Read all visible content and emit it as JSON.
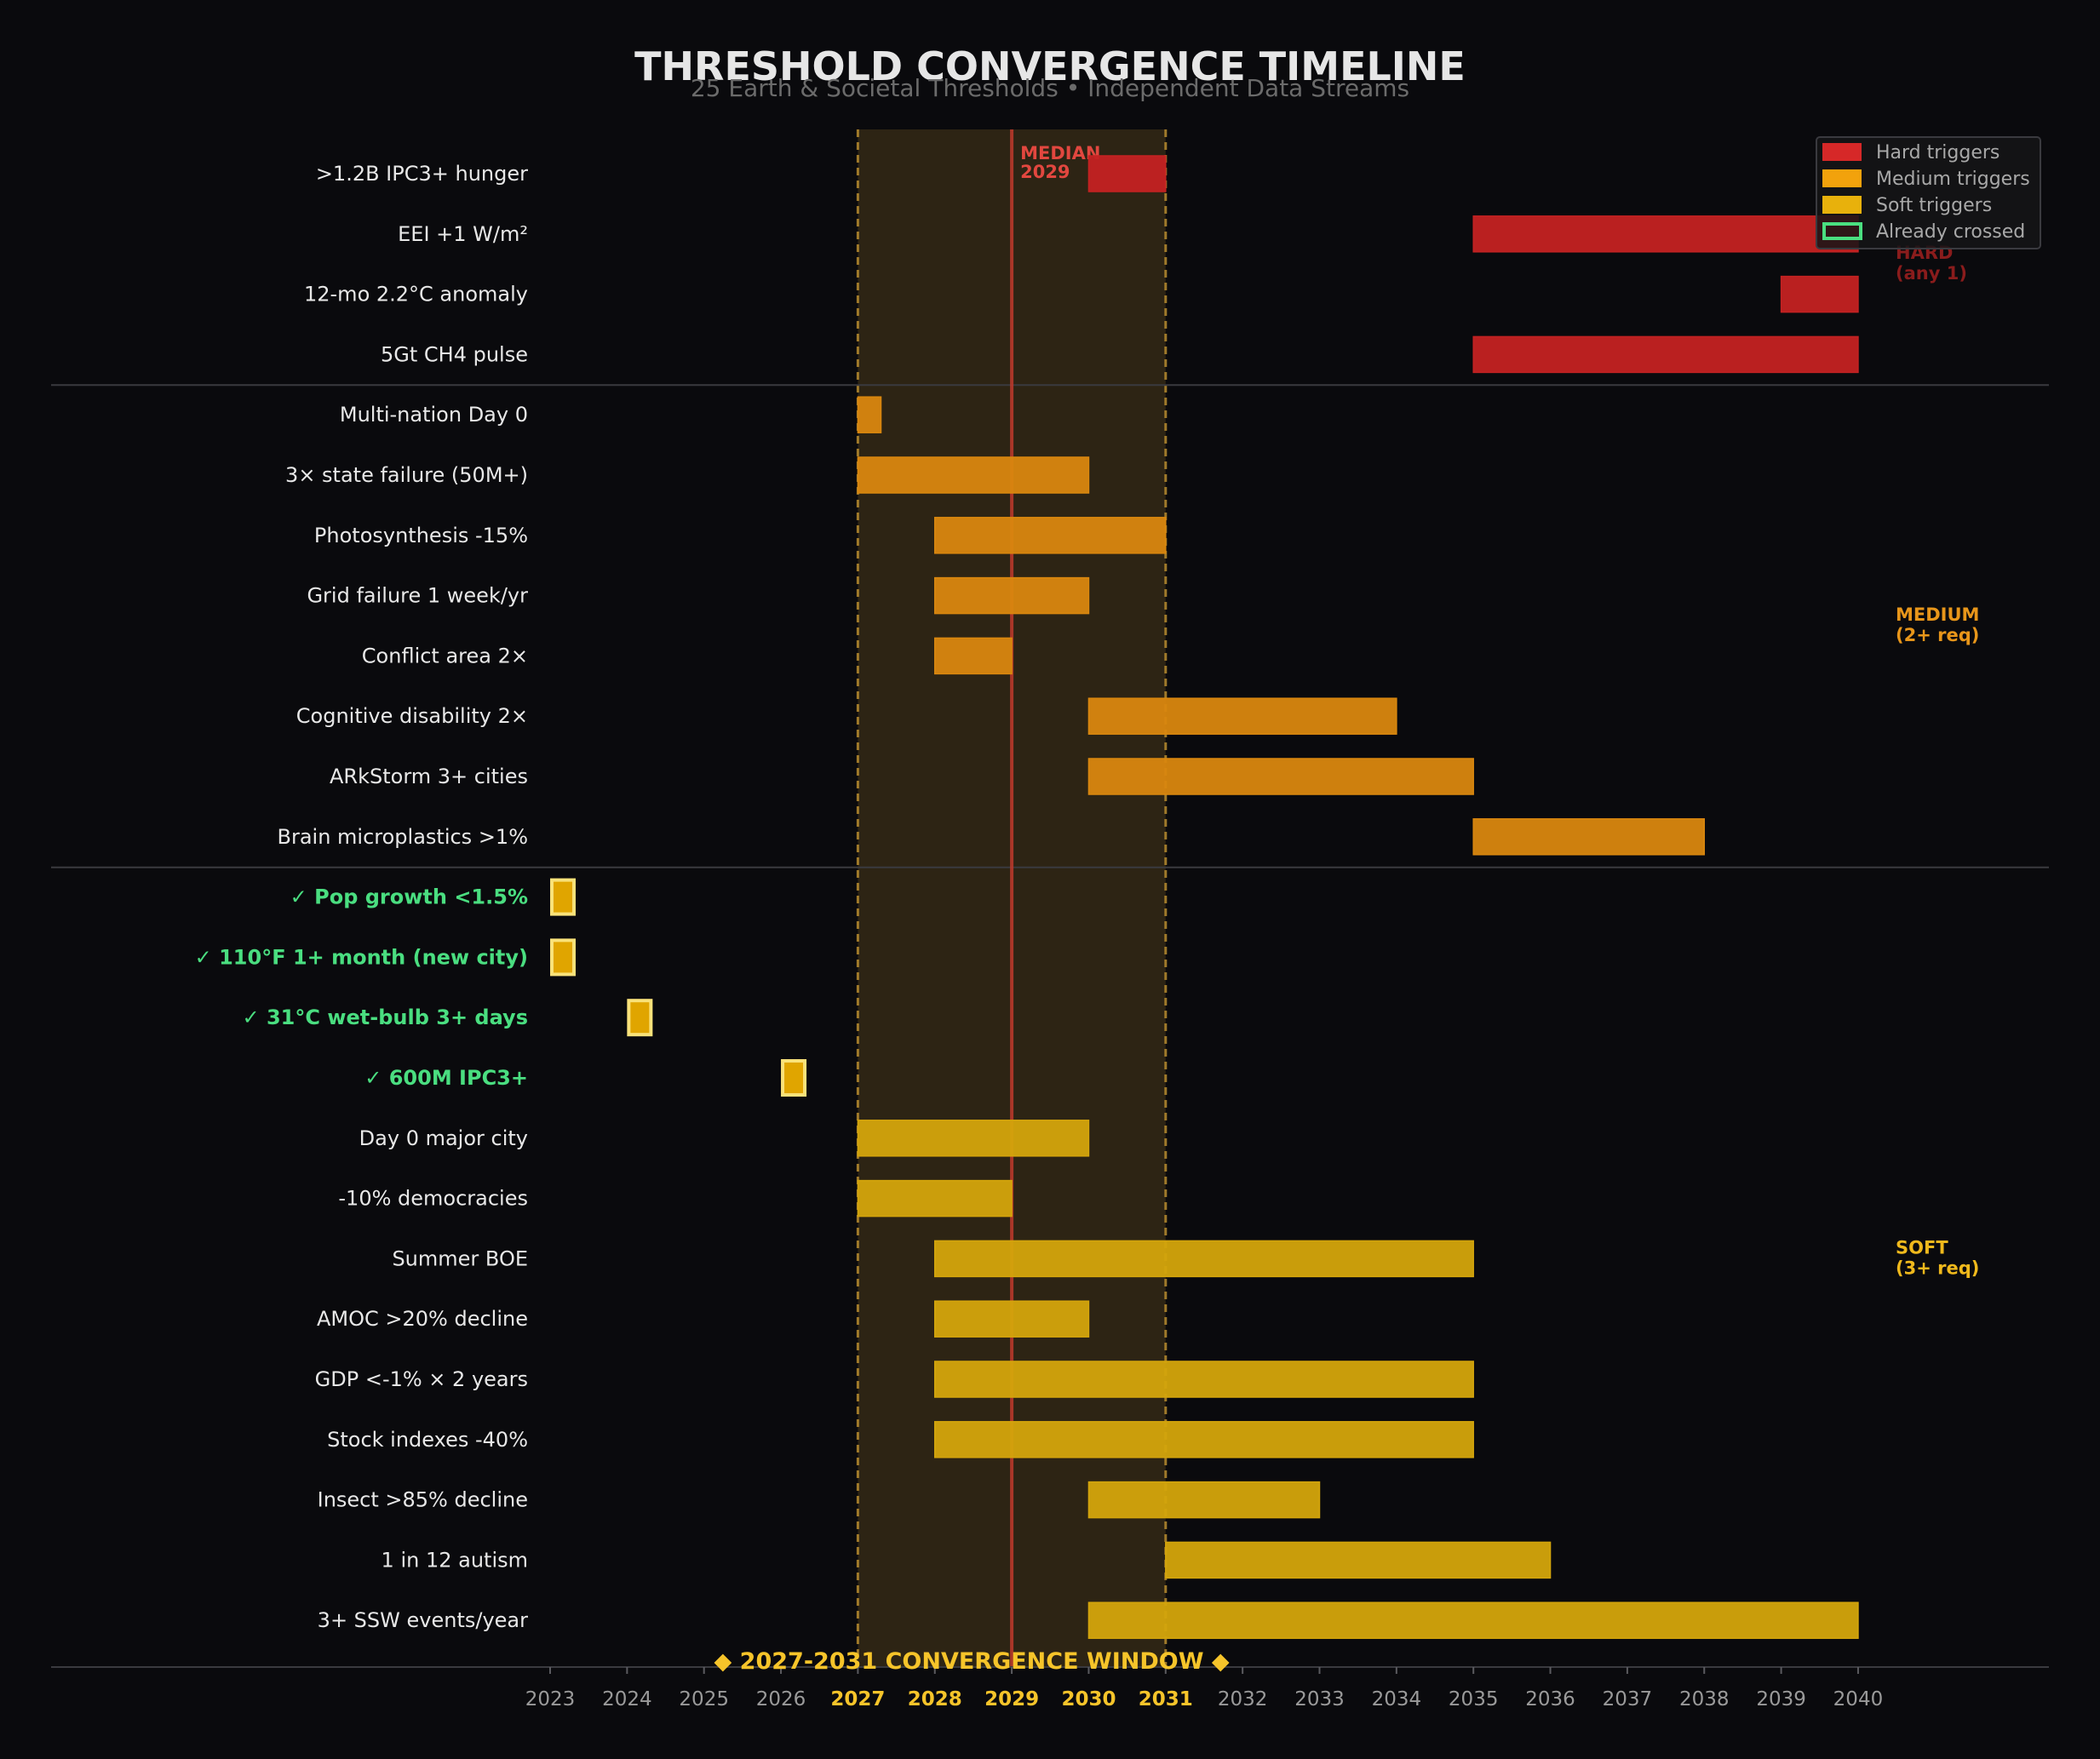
{
  "chart_data": {
    "type": "gantt",
    "title": "THRESHOLD CONVERGENCE TIMELINE",
    "subtitle": "25 Earth & Societal Thresholds • Independent Data Streams",
    "x_range": [
      2023,
      2040
    ],
    "ticks": [
      2023,
      2024,
      2025,
      2026,
      2027,
      2028,
      2029,
      2030,
      2031,
      2032,
      2033,
      2034,
      2035,
      2036,
      2037,
      2038,
      2039,
      2040
    ],
    "highlighted_ticks": [
      2027,
      2028,
      2029,
      2030,
      2031
    ],
    "convergence_window": {
      "start": 2027,
      "end": 2031,
      "label": "◆ 2027-2031 CONVERGENCE WINDOW ◆"
    },
    "median": {
      "year": 2029,
      "label_line1": "MEDIAN",
      "label_line2": "2029"
    },
    "colors": {
      "hard": "#c42222",
      "medium": "#d9870f",
      "soft": "#d4a50c",
      "crossed_fill": "#e0a500",
      "crossed_border": "#f9e27a",
      "window": "#2d2414",
      "window_edge": "#a07a2a",
      "median": "#c0392b",
      "background": "#0a0a0d"
    },
    "groups": [
      {
        "name": "hard",
        "label_line1": "HARD",
        "label_line2": "(any 1)",
        "color": "#8a1c1c"
      },
      {
        "name": "medium",
        "label_line1": "MEDIUM",
        "label_line2": "(2+ req)",
        "color": "#e8961a"
      },
      {
        "name": "soft",
        "label_line1": "SOFT",
        "label_line2": "(3+ req)",
        "color": "#f0b91c"
      }
    ],
    "legend": [
      {
        "label": "Hard triggers",
        "color": "#d62828",
        "kind": "fill"
      },
      {
        "label": "Medium triggers",
        "color": "#f2a20c",
        "kind": "fill"
      },
      {
        "label": "Soft triggers",
        "color": "#e8b10c",
        "kind": "fill"
      },
      {
        "label": "Already crossed",
        "color": "#4ade80",
        "kind": "outline"
      }
    ],
    "rows": [
      {
        "label": ">1.2B IPC3+ hunger",
        "group": "hard",
        "start": 2030,
        "end": 2031,
        "crossed": false
      },
      {
        "label": "EEI +1 W/m²",
        "group": "hard",
        "start": 2035,
        "end": 2040,
        "crossed": false
      },
      {
        "label": "12-mo 2.2°C anomaly",
        "group": "hard",
        "start": 2039,
        "end": 2040,
        "crossed": false
      },
      {
        "label": "5Gt CH4 pulse",
        "group": "hard",
        "start": 2035,
        "end": 2040,
        "crossed": false
      },
      {
        "label": "Multi-nation Day 0",
        "group": "medium",
        "start": 2027,
        "end": 2027.3,
        "crossed": false
      },
      {
        "label": "3× state failure (50M+)",
        "group": "medium",
        "start": 2027,
        "end": 2030,
        "crossed": false
      },
      {
        "label": "Photosynthesis -15%",
        "group": "medium",
        "start": 2028,
        "end": 2031,
        "crossed": false
      },
      {
        "label": "Grid failure 1 week/yr",
        "group": "medium",
        "start": 2028,
        "end": 2030,
        "crossed": false
      },
      {
        "label": "Conflict area 2×",
        "group": "medium",
        "start": 2028,
        "end": 2029,
        "crossed": false
      },
      {
        "label": "Cognitive disability 2×",
        "group": "medium",
        "start": 2030,
        "end": 2034,
        "crossed": false
      },
      {
        "label": "ARkStorm 3+ cities",
        "group": "medium",
        "start": 2030,
        "end": 2035,
        "crossed": false
      },
      {
        "label": "Brain microplastics >1%",
        "group": "medium",
        "start": 2035,
        "end": 2038,
        "crossed": false
      },
      {
        "label": "✓ Pop growth <1.5%",
        "group": "soft",
        "start": 2023,
        "end": 2023.3,
        "crossed": true
      },
      {
        "label": "✓ 110°F 1+ month (new city)",
        "group": "soft",
        "start": 2023,
        "end": 2023.3,
        "crossed": true
      },
      {
        "label": "✓ 31°C wet-bulb 3+ days",
        "group": "soft",
        "start": 2024,
        "end": 2024.3,
        "crossed": true
      },
      {
        "label": "✓ 600M IPC3+",
        "group": "soft",
        "start": 2026,
        "end": 2026.3,
        "crossed": true
      },
      {
        "label": "Day 0 major city",
        "group": "soft",
        "start": 2027,
        "end": 2030,
        "crossed": false
      },
      {
        "label": "-10% democracies",
        "group": "soft",
        "start": 2027,
        "end": 2029,
        "crossed": false
      },
      {
        "label": "Summer BOE",
        "group": "soft",
        "start": 2028,
        "end": 2035,
        "crossed": false
      },
      {
        "label": "AMOC >20% decline",
        "group": "soft",
        "start": 2028,
        "end": 2030,
        "crossed": false
      },
      {
        "label": "GDP <-1% × 2 years",
        "group": "soft",
        "start": 2028,
        "end": 2035,
        "crossed": false
      },
      {
        "label": "Stock indexes -40%",
        "group": "soft",
        "start": 2028,
        "end": 2035,
        "crossed": false
      },
      {
        "label": "Insect >85% decline",
        "group": "soft",
        "start": 2030,
        "end": 2033,
        "crossed": false
      },
      {
        "label": "1 in 12 autism",
        "group": "soft",
        "start": 2031,
        "end": 2036,
        "crossed": false
      },
      {
        "label": "3+ SSW events/year",
        "group": "soft",
        "start": 2030,
        "end": 2040,
        "crossed": false
      }
    ]
  }
}
